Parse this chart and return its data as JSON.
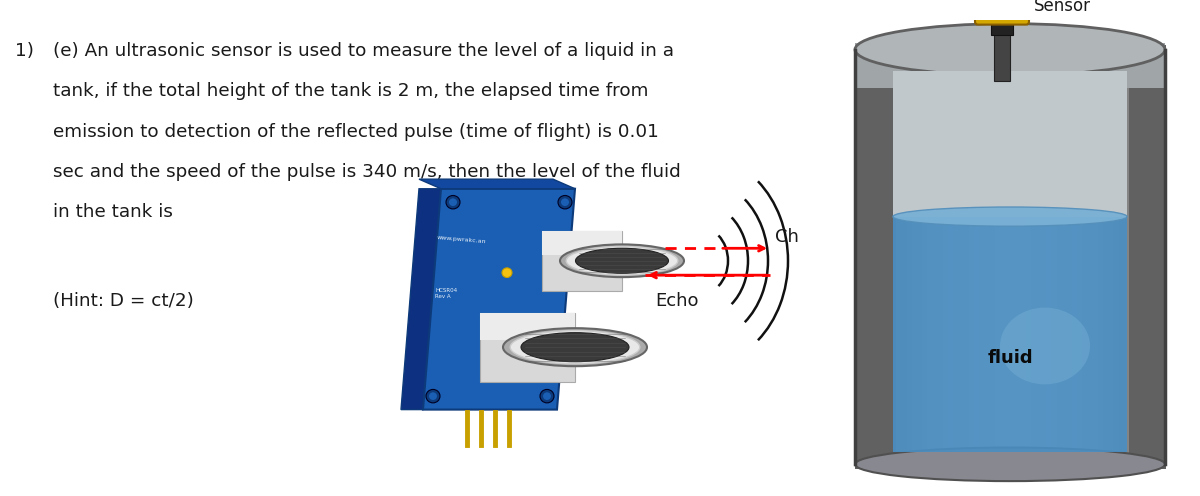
{
  "bg_color": "#ffffff",
  "text_color": "#1a1a1a",
  "question_number": "1)",
  "question_label": "(e)",
  "question_text_line1": "An ultrasonic sensor is used to measure the level of a liquid in a",
  "question_text_line2": "tank, if the total height of the tank is 2 m, the elapsed time from",
  "question_text_line3": "emission to detection of the reflected pulse (time of flight) is 0.01",
  "question_text_line4": "sec and the speed of the pulse is 340 m/s, then the level of the fluid",
  "question_text_line5": "in the tank is",
  "hint_text": "(Hint: D = ct/2)",
  "sensor_label": "Sensor",
  "fluid_label": "fluid",
  "ch_label": "Ch",
  "echo_label": "Echo",
  "font_size_main": 13.2,
  "font_size_hint": 13.2,
  "board_color": "#1a5fb4",
  "board_edge_color": "#0d3a7a",
  "board_side_color": "#0d3080",
  "cyl_white": "#e8e8e8",
  "cyl_dark": "#404040",
  "tank_outer": "#909090",
  "tank_inner_top": "#c0c8cc",
  "fluid_color": "#4488bb",
  "fluid_surface": "#5599cc",
  "sensor_yellow": "#d4a800",
  "sensor_stem": "#333333"
}
